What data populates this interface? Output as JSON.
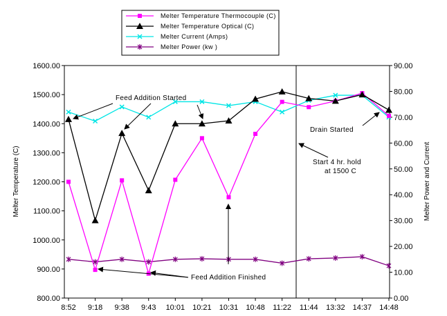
{
  "chart_data": {
    "type": "line",
    "categories": [
      "8:52",
      "9:18",
      "9:38",
      "9:43",
      "10:01",
      "10:21",
      "10:31",
      "10:48",
      "11:22",
      "11:44",
      "13:32",
      "14:37",
      "14:48"
    ],
    "ylabel": "Melter Temperature (C)",
    "y2label": "Melter Power and Current",
    "ylim": [
      800,
      1600
    ],
    "y2lim": [
      0,
      90
    ],
    "y_ticks": [
      "800.00",
      "900.00",
      "1000.00",
      "1100.00",
      "1200.00",
      "1300.00",
      "1400.00",
      "1500.00",
      "1600.00"
    ],
    "y2_ticks": [
      "0.00",
      "10.00",
      "20.00",
      "30.00",
      "40.00",
      "50.00",
      "60.00",
      "70.00",
      "80.00",
      "90.00"
    ],
    "grid": false,
    "legend_position": "top",
    "series": [
      {
        "name": "Melter Temperature Thermocouple (C)",
        "axis": "left",
        "color": "#ff00ff",
        "marker": "square",
        "values": [
          1200,
          897,
          1205,
          884,
          1207,
          1350,
          1147,
          1365,
          1475,
          1457,
          1478,
          1505,
          1427
        ]
      },
      {
        "name": "Melter Temperature Optical (C)",
        "axis": "left",
        "color": "#000000",
        "marker": "triangle",
        "values": [
          1415,
          1067,
          1367,
          1170,
          1400,
          1400,
          1410,
          1485,
          1510,
          1487,
          1478,
          1500,
          1447
        ]
      },
      {
        "name": "Melter Current (Amps)",
        "axis": "right",
        "color": "#00e5e5",
        "marker": "x",
        "values": [
          72,
          68.5,
          74,
          70,
          76,
          76,
          74.5,
          76,
          72,
          76.5,
          78.5,
          78.5,
          70
        ]
      },
      {
        "name": "Melter Power (kw )",
        "axis": "right",
        "color": "#800080",
        "marker": "star",
        "values": [
          15,
          14,
          15,
          14,
          15,
          15.2,
          15,
          15,
          13.5,
          15.2,
          15.5,
          16,
          12.5
        ]
      }
    ],
    "annotations": {
      "feed_started": "Feed Addition Started",
      "feed_finished": "Feed Addition Finished",
      "drain_started": "Drain Started",
      "hold_line1": "Start 4 hr. hold",
      "hold_line2": "at 1500 C"
    }
  }
}
